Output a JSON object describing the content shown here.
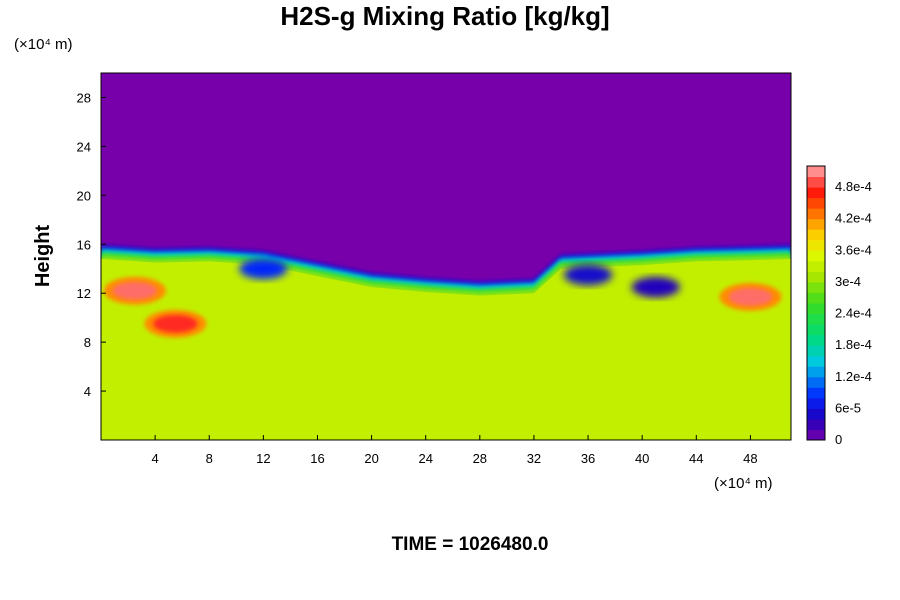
{
  "chart_data": {
    "type": "heatmap",
    "title": "H2S-g Mixing Ratio [kg/kg]",
    "xlabel": "",
    "ylabel": "Height",
    "x_unit_text": "(×10⁴ m)",
    "y_unit_text": "(×10⁴ m)",
    "xlim": [
      0,
      51
    ],
    "ylim": [
      0,
      30
    ],
    "x_ticks": [
      4,
      8,
      12,
      16,
      20,
      24,
      28,
      32,
      36,
      40,
      44,
      48
    ],
    "y_ticks": [
      4,
      8,
      12,
      16,
      20,
      24,
      28
    ],
    "colorbar": {
      "min": 0,
      "max": 0.00052,
      "tick_values": [
        0,
        6e-05,
        0.00012,
        0.00018,
        0.00024,
        0.0003,
        0.00036,
        0.00042,
        0.00048
      ],
      "tick_labels": [
        "0",
        "6e-5",
        "1.2e-4",
        "1.8e-4",
        "2.4e-4",
        "3e-4",
        "3.6e-4",
        "4.2e-4",
        "4.8e-4"
      ]
    },
    "regions": {
      "lower_layer_value": 0.00033,
      "upper_layer_value": 0,
      "interface_height": [
        [
          0,
          14.8
        ],
        [
          4,
          14.5
        ],
        [
          8,
          14.6
        ],
        [
          12,
          14.3
        ],
        [
          16,
          13.4
        ],
        [
          20,
          12.5
        ],
        [
          24,
          12.1
        ],
        [
          28,
          11.8
        ],
        [
          32,
          12.0
        ],
        [
          34,
          14.0
        ],
        [
          40,
          14.3
        ],
        [
          44,
          14.6
        ],
        [
          48,
          14.7
        ],
        [
          51,
          14.8
        ]
      ],
      "high_patches": [
        {
          "x": 2.5,
          "y": 12.2,
          "value": 0.0005
        },
        {
          "x": 5.5,
          "y": 9.5,
          "value": 0.00048
        },
        {
          "x": 48,
          "y": 11.7,
          "value": 0.0005
        }
      ],
      "low_patches": [
        {
          "x": 12,
          "y": 14.0,
          "value": 8e-05
        },
        {
          "x": 36,
          "y": 13.5,
          "value": 5e-05
        },
        {
          "x": 41,
          "y": 12.5,
          "value": 4e-05
        }
      ]
    },
    "time_label": "TIME = 1026480.0"
  }
}
